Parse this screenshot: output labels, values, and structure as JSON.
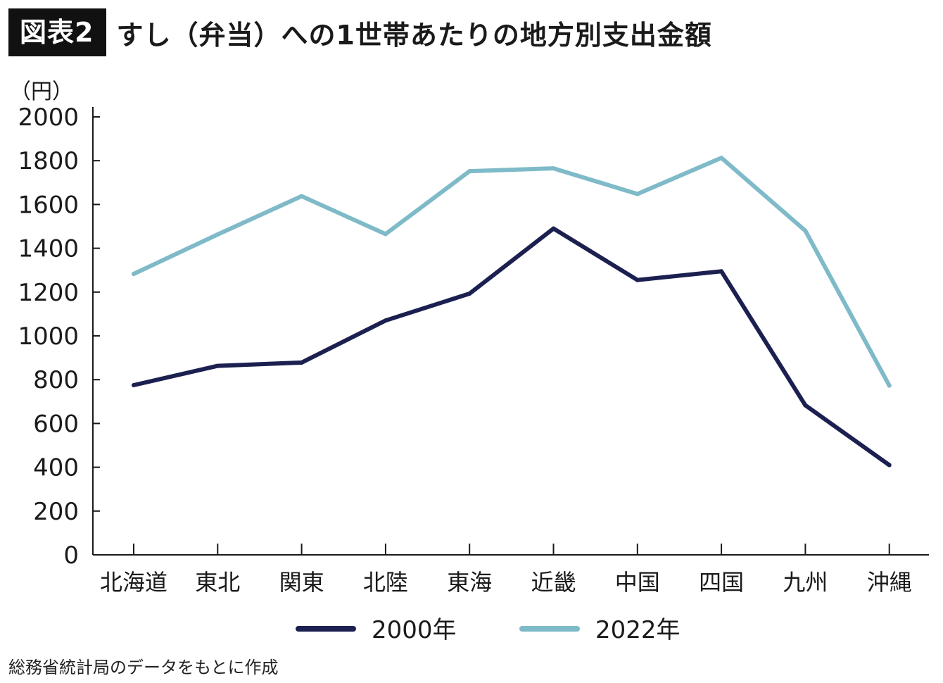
{
  "header": {
    "badge": "図表2",
    "title": "すし（弁当）への1世帯あたりの地方別支出金額"
  },
  "chart_data": {
    "type": "line",
    "title": "すし（弁当）への1世帯あたりの地方別支出金額",
    "xlabel": "",
    "ylabel": "（円）",
    "ylim": [
      0,
      2000
    ],
    "yticks": [
      0,
      200,
      400,
      600,
      800,
      1000,
      1200,
      1400,
      1600,
      1800,
      2000
    ],
    "grid": false,
    "legend_position": "bottom-center",
    "categories": [
      "北海道",
      "東北",
      "関東",
      "北陸",
      "東海",
      "近畿",
      "中国",
      "四国",
      "九州",
      "沖縄"
    ],
    "series": [
      {
        "name": "2000年",
        "color": "#1c2050",
        "values": [
          775,
          863,
          878,
          1070,
          1193,
          1490,
          1255,
          1295,
          683,
          410
        ]
      },
      {
        "name": "2022年",
        "color": "#7fbac8",
        "values": [
          1283,
          1463,
          1638,
          1465,
          1752,
          1765,
          1648,
          1813,
          1480,
          773
        ]
      }
    ]
  },
  "source": "総務省統計局のデータをもとに作成"
}
